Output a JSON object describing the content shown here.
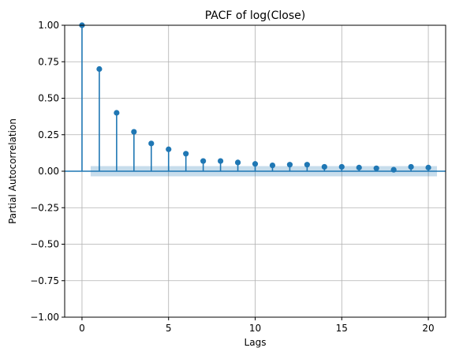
{
  "chart_data": {
    "type": "scatter",
    "title": "PACF of log(Close)",
    "xlabel": "Lags",
    "ylabel": "Partial Autocorrelation",
    "xlim": [
      -1,
      21
    ],
    "ylim": [
      -1.0,
      1.0
    ],
    "x_ticks": [
      0,
      5,
      10,
      15,
      20
    ],
    "x_tick_labels": [
      "0",
      "5",
      "10",
      "15",
      "20"
    ],
    "y_ticks": [
      -1.0,
      -0.75,
      -0.5,
      -0.25,
      0.0,
      0.25,
      0.5,
      0.75,
      1.0
    ],
    "y_tick_labels": [
      "−1.00",
      "−0.75",
      "−0.50",
      "−0.25",
      "0.00",
      "0.25",
      "0.50",
      "0.75",
      "1.00"
    ],
    "grid": true,
    "series": [
      {
        "x": [
          0,
          1,
          2,
          3,
          4,
          5,
          6,
          7,
          8,
          9,
          10,
          11,
          12,
          13,
          14,
          15,
          16,
          17,
          18,
          19,
          20
        ],
        "values": [
          1.0,
          0.7,
          0.4,
          0.27,
          0.19,
          0.15,
          0.12,
          0.07,
          0.07,
          0.06,
          0.05,
          0.04,
          0.045,
          0.045,
          0.03,
          0.03,
          0.025,
          0.02,
          0.01,
          0.03,
          0.025
        ]
      }
    ],
    "confidence_band": {
      "x_range": [
        0.5,
        20.5
      ],
      "lower": -0.035,
      "upper": 0.035
    },
    "colors": {
      "stem": "#1f77b4",
      "band": "#1f77b4",
      "grid": "#b0b0b0"
    }
  }
}
